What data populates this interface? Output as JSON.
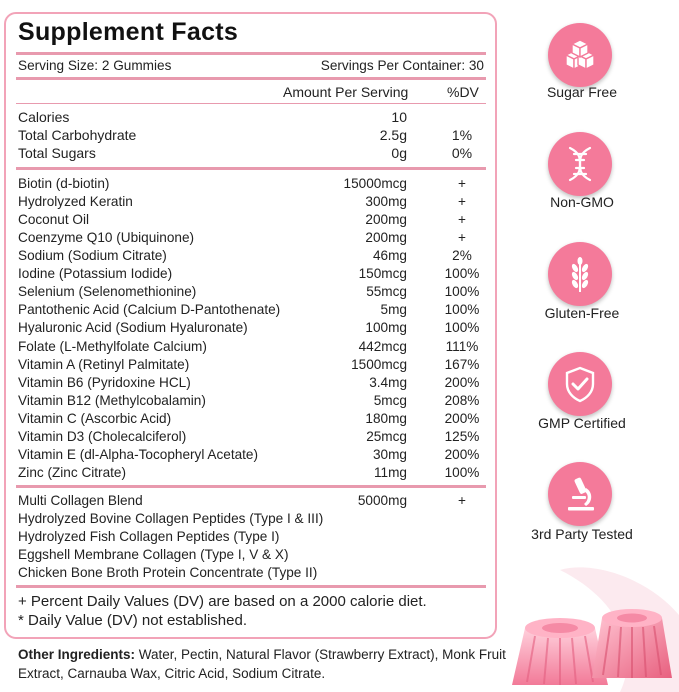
{
  "title": "Supplement Facts",
  "serving_size": "Serving Size: 2 Gummies",
  "servings_per_container": "Servings Per Container: 30",
  "header": {
    "amount": "Amount Per Serving",
    "dv": "%DV"
  },
  "macros": [
    {
      "name": "Calories",
      "amount": "10",
      "dv": ""
    },
    {
      "name": "Total Carbohydrate",
      "amount": "2.5g",
      "dv": "1%"
    },
    {
      "name": "Total Sugars",
      "amount": "0g",
      "dv": "0%"
    }
  ],
  "nutrients": [
    {
      "name": "Biotin (d-biotin)",
      "amount": "15000mcg",
      "dv": "+"
    },
    {
      "name": "Hydrolyzed Keratin",
      "amount": "300mg",
      "dv": "+"
    },
    {
      "name": "Coconut Oil",
      "amount": "200mg",
      "dv": "+"
    },
    {
      "name": "Coenzyme Q10 (Ubiquinone)",
      "amount": "200mg",
      "dv": "+"
    },
    {
      "name": "Sodium (Sodium Citrate)",
      "amount": "46mg",
      "dv": "2%"
    },
    {
      "name": "Iodine (Potassium Iodide)",
      "amount": "150mcg",
      "dv": "100%"
    },
    {
      "name": "Selenium (Selenomethionine)",
      "amount": "55mcg",
      "dv": "100%"
    },
    {
      "name": "Pantothenic Acid (Calcium D-Pantothenate)",
      "amount": "5mg",
      "dv": "100%"
    },
    {
      "name": "Hyaluronic Acid (Sodium Hyaluronate)",
      "amount": "100mg",
      "dv": "100%"
    },
    {
      "name": "Folate (L-Methylfolate Calcium)",
      "amount": "442mcg",
      "dv": "111%"
    },
    {
      "name": "Vitamin A (Retinyl Palmitate)",
      "amount": "1500mcg",
      "dv": "167%"
    },
    {
      "name": "Vitamin B6 (Pyridoxine HCL)",
      "amount": "3.4mg",
      "dv": "200%"
    },
    {
      "name": "Vitamin B12 (Methylcobalamin)",
      "amount": "5mcg",
      "dv": "208%"
    },
    {
      "name": "Vitamin C (Ascorbic Acid)",
      "amount": "180mg",
      "dv": "200%"
    },
    {
      "name": "Vitamin D3 (Cholecalciferol)",
      "amount": "25mcg",
      "dv": "125%"
    },
    {
      "name": "Vitamin E (dl-Alpha-Tocopheryl Acetate)",
      "amount": "30mg",
      "dv": "200%"
    },
    {
      "name": "Zinc (Zinc Citrate)",
      "amount": "11mg",
      "dv": "100%"
    }
  ],
  "blend": {
    "name": "Multi Collagen Blend",
    "amount": "5000mg",
    "dv": "+",
    "items": [
      "Hydrolyzed Bovine Collagen Peptides (Type I & III)",
      "Hydrolyzed Fish Collagen Peptides (Type I)",
      "Eggshell Membrane Collagen (Type I, V & X)",
      "Chicken Bone Broth Protein Concentrate (Type II)"
    ]
  },
  "footnotes": [
    "+ Percent Daily Values (DV) are based on a 2000 calorie diet.",
    "* Daily Value (DV) not established."
  ],
  "other_ingredients": {
    "label": "Other Ingredients:",
    "text": " Water, Pectin, Natural Flavor (Strawberry Extract), Monk Fruit Extract, Carnauba Wax, Citric Acid, Sodium Citrate."
  },
  "badges": [
    {
      "label": "Sugar Free",
      "icon": "sugar-cubes-icon"
    },
    {
      "label": "Non-GMO",
      "icon": "dna-icon"
    },
    {
      "label": "Gluten-Free",
      "icon": "wheat-icon"
    },
    {
      "label": "GMP Certified",
      "icon": "shield-check-icon"
    },
    {
      "label": "3rd Party Tested",
      "icon": "microscope-icon"
    }
  ],
  "colors": {
    "accent": "#f47a9a",
    "border": "#f2a3b8",
    "rule": "#e89aae"
  }
}
